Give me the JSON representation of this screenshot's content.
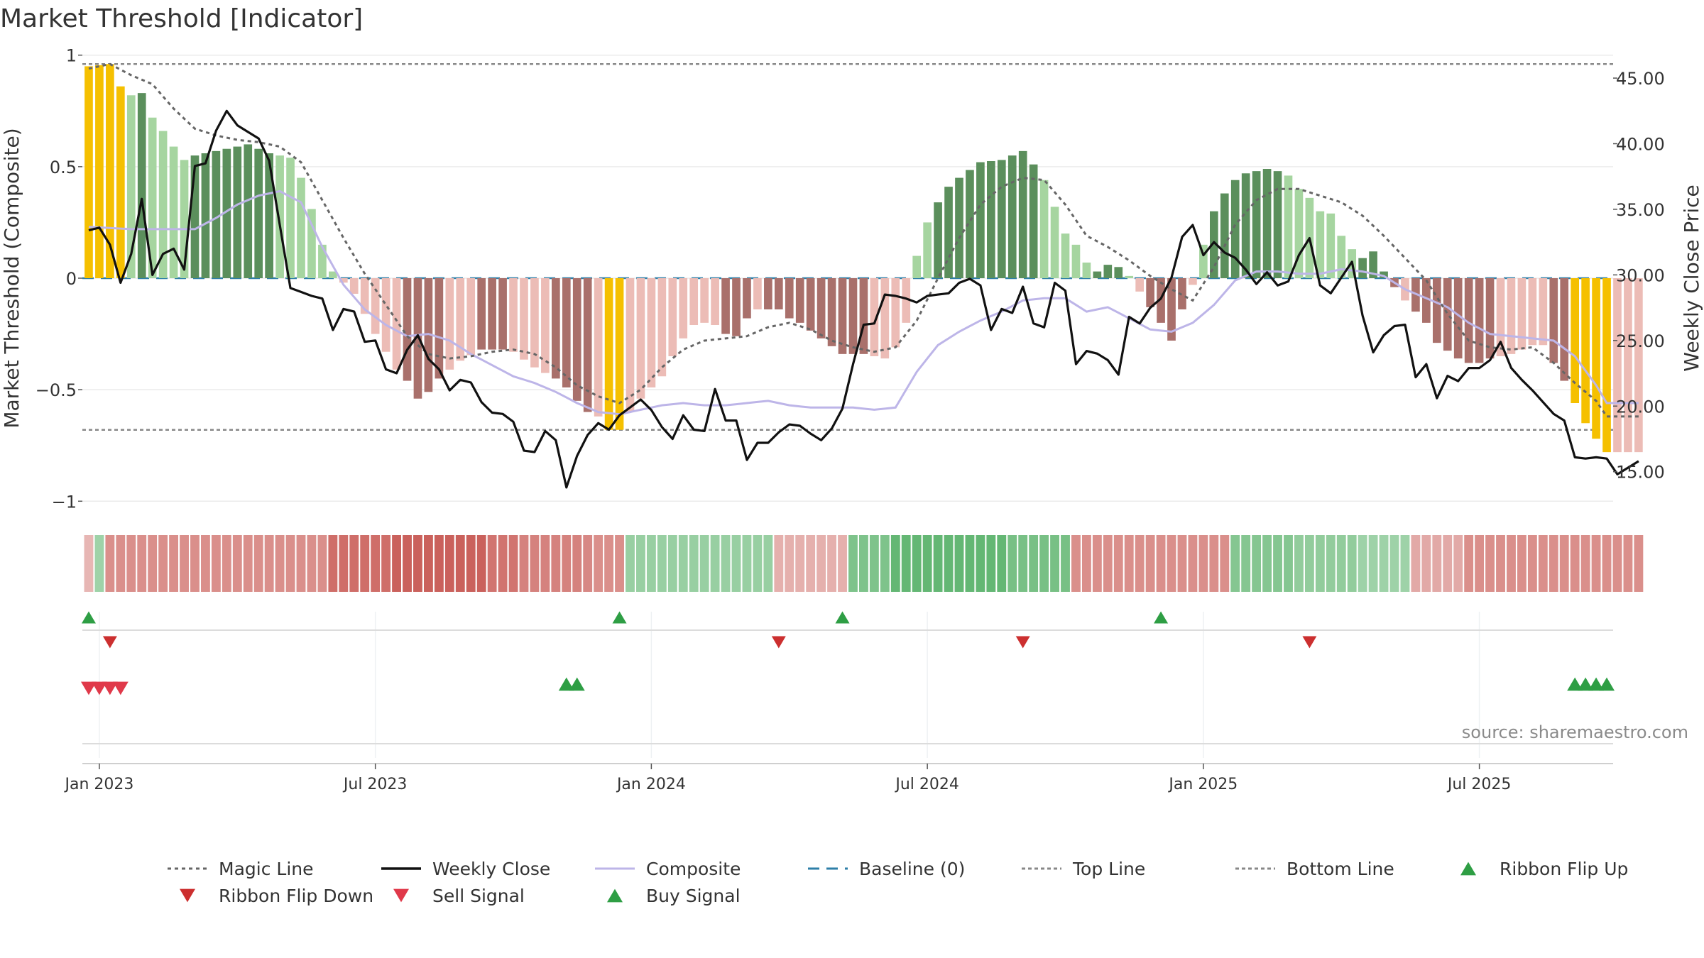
{
  "chart_data": {
    "type": "bar",
    "title": "Market Threshold [Indicator]",
    "ylabel_left": "Market Threshold (Composite)",
    "ylabel_right": "Weekly Close Price",
    "ylim_left": [
      -1.05,
      1.05
    ],
    "ylim_right": [
      11.9,
      47.6
    ],
    "yticks_left": [
      {
        "v": 1,
        "label": "1"
      },
      {
        "v": 0.5,
        "label": "0.5"
      },
      {
        "v": 0,
        "label": "0"
      },
      {
        "v": -0.5,
        "label": "−0.5"
      },
      {
        "v": -1,
        "label": "−1"
      }
    ],
    "yticks_right": [
      {
        "v": 45,
        "label": "45.00"
      },
      {
        "v": 40,
        "label": "40.00"
      },
      {
        "v": 35,
        "label": "35.00"
      },
      {
        "v": 30,
        "label": "30.00"
      },
      {
        "v": 25,
        "label": "25.00"
      },
      {
        "v": 20,
        "label": "20.00"
      },
      {
        "v": 15,
        "label": "15.00"
      }
    ],
    "xticks": [
      {
        "week": 1,
        "label": "Jan 2023"
      },
      {
        "week": 27,
        "label": "Jul 2023"
      },
      {
        "week": 53,
        "label": "Jan 2024"
      },
      {
        "week": 79,
        "label": "Jul 2024"
      },
      {
        "week": 105,
        "label": "Jan 2025"
      },
      {
        "week": 131,
        "label": "Jul 2025"
      }
    ],
    "x_range": [
      -0.6,
      143.6
    ],
    "top_line": 0.96,
    "bottom_line": -0.68,
    "baseline": 0,
    "bar_anchors": [
      [
        0,
        0.95
      ],
      [
        2,
        0.96
      ],
      [
        3,
        0.86
      ],
      [
        4,
        0.82
      ],
      [
        5,
        0.83
      ],
      [
        6,
        0.72
      ],
      [
        7,
        0.66
      ],
      [
        8,
        0.59
      ],
      [
        9,
        0.53
      ],
      [
        10,
        0.55
      ],
      [
        11,
        0.56
      ],
      [
        13,
        0.58
      ],
      [
        14,
        0.59
      ],
      [
        15,
        0.6
      ],
      [
        17,
        0.56
      ],
      [
        18,
        0.55
      ],
      [
        19,
        0.54
      ],
      [
        20,
        0.45
      ],
      [
        21,
        0.31
      ],
      [
        22,
        0.15
      ],
      [
        23,
        0.03
      ],
      [
        24,
        -0.02
      ],
      [
        25,
        -0.07
      ],
      [
        26,
        -0.16
      ],
      [
        27,
        -0.25
      ],
      [
        28,
        -0.33
      ],
      [
        29,
        -0.41
      ],
      [
        30,
        -0.46
      ],
      [
        31,
        -0.54
      ],
      [
        32,
        -0.51
      ],
      [
        33,
        -0.45
      ],
      [
        35,
        -0.37
      ],
      [
        37,
        -0.32
      ],
      [
        39,
        -0.32
      ],
      [
        40,
        -0.33
      ],
      [
        42,
        -0.4
      ],
      [
        44,
        -0.45
      ],
      [
        45,
        -0.49
      ],
      [
        46,
        -0.55
      ],
      [
        47,
        -0.6
      ],
      [
        48,
        -0.62
      ],
      [
        49,
        -0.68
      ],
      [
        50,
        -0.68
      ],
      [
        51,
        -0.6
      ],
      [
        52,
        -0.54
      ],
      [
        53,
        -0.49
      ],
      [
        54,
        -0.44
      ],
      [
        55,
        -0.35
      ],
      [
        56,
        -0.27
      ],
      [
        57,
        -0.21
      ],
      [
        58,
        -0.2
      ],
      [
        59,
        -0.21
      ],
      [
        60,
        -0.25
      ],
      [
        61,
        -0.26
      ],
      [
        62,
        -0.18
      ],
      [
        63,
        -0.14
      ],
      [
        65,
        -0.14
      ],
      [
        66,
        -0.18
      ],
      [
        67,
        -0.2
      ],
      [
        69,
        -0.27
      ],
      [
        71,
        -0.34
      ],
      [
        73,
        -0.34
      ],
      [
        75,
        -0.36
      ],
      [
        76,
        -0.31
      ],
      [
        77,
        -0.2
      ],
      [
        78,
        0.1
      ],
      [
        79,
        0.25
      ],
      [
        80,
        0.34
      ],
      [
        81,
        0.41
      ],
      [
        82,
        0.45
      ],
      [
        84,
        0.52
      ],
      [
        86,
        0.53
      ],
      [
        87,
        0.55
      ],
      [
        88,
        0.57
      ],
      [
        89,
        0.51
      ],
      [
        90,
        0.44
      ],
      [
        91,
        0.32
      ],
      [
        92,
        0.2
      ],
      [
        93,
        0.15
      ],
      [
        94,
        0.07
      ],
      [
        95,
        0.03
      ],
      [
        96,
        0.06
      ],
      [
        97,
        0.05
      ],
      [
        98,
        0.01
      ],
      [
        99,
        -0.06
      ],
      [
        100,
        -0.13
      ],
      [
        101,
        -0.2
      ],
      [
        102,
        -0.28
      ],
      [
        103,
        -0.14
      ],
      [
        104,
        -0.03
      ],
      [
        105,
        0.15
      ],
      [
        106,
        0.3
      ],
      [
        107,
        0.38
      ],
      [
        108,
        0.44
      ],
      [
        109,
        0.47
      ],
      [
        110,
        0.48
      ],
      [
        111,
        0.49
      ],
      [
        112,
        0.48
      ],
      [
        113,
        0.46
      ],
      [
        114,
        0.4
      ],
      [
        115,
        0.36
      ],
      [
        116,
        0.3
      ],
      [
        117,
        0.29
      ],
      [
        118,
        0.19
      ],
      [
        119,
        0.13
      ],
      [
        120,
        0.09
      ],
      [
        121,
        0.12
      ],
      [
        122,
        0.03
      ],
      [
        123,
        -0.04
      ],
      [
        124,
        -0.1
      ],
      [
        125,
        -0.15
      ],
      [
        126,
        -0.2
      ],
      [
        127,
        -0.29
      ],
      [
        129,
        -0.36
      ],
      [
        130,
        -0.38
      ],
      [
        131,
        -0.38
      ],
      [
        132,
        -0.36
      ],
      [
        134,
        -0.34
      ],
      [
        135,
        -0.32
      ],
      [
        136,
        -0.3
      ],
      [
        137,
        -0.3
      ],
      [
        138,
        -0.38
      ],
      [
        139,
        -0.46
      ],
      [
        140,
        -0.56
      ],
      [
        141,
        -0.65
      ],
      [
        142,
        -0.72
      ],
      [
        143,
        -0.78
      ]
    ],
    "yellow_bars": [
      [
        0,
        3
      ],
      [
        49,
        50
      ],
      [
        140,
        143
      ]
    ],
    "dark_bars": [
      [
        5,
        5
      ],
      [
        10,
        17
      ],
      [
        30,
        33
      ],
      [
        37,
        39
      ],
      [
        44,
        47
      ],
      [
        60,
        62
      ],
      [
        64,
        66
      ],
      [
        67,
        73
      ],
      [
        80,
        89
      ],
      [
        95,
        97
      ],
      [
        100,
        103
      ],
      [
        106,
        112
      ],
      [
        120,
        121
      ],
      [
        122,
        123
      ],
      [
        125,
        132
      ],
      [
        138,
        141
      ]
    ],
    "magic_line_anchors": [
      [
        0,
        0.94
      ],
      [
        2,
        0.96
      ],
      [
        4,
        0.91
      ],
      [
        6,
        0.87
      ],
      [
        8,
        0.76
      ],
      [
        10,
        0.67
      ],
      [
        12,
        0.64
      ],
      [
        14,
        0.62
      ],
      [
        16,
        0.61
      ],
      [
        18,
        0.59
      ],
      [
        20,
        0.52
      ],
      [
        22,
        0.35
      ],
      [
        24,
        0.18
      ],
      [
        26,
        0.02
      ],
      [
        28,
        -0.12
      ],
      [
        30,
        -0.26
      ],
      [
        32,
        -0.34
      ],
      [
        34,
        -0.36
      ],
      [
        36,
        -0.35
      ],
      [
        38,
        -0.33
      ],
      [
        40,
        -0.32
      ],
      [
        42,
        -0.34
      ],
      [
        44,
        -0.4
      ],
      [
        46,
        -0.48
      ],
      [
        48,
        -0.53
      ],
      [
        50,
        -0.56
      ],
      [
        52,
        -0.5
      ],
      [
        54,
        -0.4
      ],
      [
        56,
        -0.32
      ],
      [
        58,
        -0.28
      ],
      [
        60,
        -0.27
      ],
      [
        62,
        -0.26
      ],
      [
        64,
        -0.22
      ],
      [
        66,
        -0.2
      ],
      [
        68,
        -0.23
      ],
      [
        70,
        -0.28
      ],
      [
        72,
        -0.31
      ],
      [
        74,
        -0.33
      ],
      [
        76,
        -0.31
      ],
      [
        78,
        -0.19
      ],
      [
        80,
        0.0
      ],
      [
        82,
        0.18
      ],
      [
        84,
        0.33
      ],
      [
        86,
        0.41
      ],
      [
        88,
        0.45
      ],
      [
        90,
        0.44
      ],
      [
        92,
        0.33
      ],
      [
        94,
        0.19
      ],
      [
        96,
        0.14
      ],
      [
        98,
        0.08
      ],
      [
        100,
        0.01
      ],
      [
        102,
        -0.05
      ],
      [
        104,
        -0.1
      ],
      [
        106,
        0.05
      ],
      [
        108,
        0.24
      ],
      [
        110,
        0.35
      ],
      [
        112,
        0.4
      ],
      [
        114,
        0.4
      ],
      [
        116,
        0.37
      ],
      [
        118,
        0.34
      ],
      [
        120,
        0.28
      ],
      [
        122,
        0.19
      ],
      [
        124,
        0.09
      ],
      [
        126,
        -0.01
      ],
      [
        128,
        -0.16
      ],
      [
        130,
        -0.28
      ],
      [
        132,
        -0.31
      ],
      [
        134,
        -0.32
      ],
      [
        136,
        -0.31
      ],
      [
        138,
        -0.38
      ],
      [
        140,
        -0.47
      ],
      [
        142,
        -0.55
      ],
      [
        143,
        -0.62
      ]
    ],
    "composite_anchors": [
      [
        0,
        0.23
      ],
      [
        4,
        0.22
      ],
      [
        8,
        0.22
      ],
      [
        10,
        0.22
      ],
      [
        12,
        0.27
      ],
      [
        14,
        0.33
      ],
      [
        16,
        0.37
      ],
      [
        18,
        0.39
      ],
      [
        20,
        0.34
      ],
      [
        22,
        0.14
      ],
      [
        24,
        -0.03
      ],
      [
        26,
        -0.14
      ],
      [
        28,
        -0.21
      ],
      [
        30,
        -0.26
      ],
      [
        32,
        -0.25
      ],
      [
        34,
        -0.28
      ],
      [
        36,
        -0.34
      ],
      [
        38,
        -0.39
      ],
      [
        40,
        -0.44
      ],
      [
        42,
        -0.47
      ],
      [
        44,
        -0.51
      ],
      [
        46,
        -0.56
      ],
      [
        48,
        -0.6
      ],
      [
        50,
        -0.61
      ],
      [
        52,
        -0.59
      ],
      [
        54,
        -0.57
      ],
      [
        56,
        -0.56
      ],
      [
        58,
        -0.57
      ],
      [
        60,
        -0.57
      ],
      [
        62,
        -0.56
      ],
      [
        64,
        -0.55
      ],
      [
        66,
        -0.57
      ],
      [
        68,
        -0.58
      ],
      [
        70,
        -0.58
      ],
      [
        72,
        -0.58
      ],
      [
        74,
        -0.59
      ],
      [
        76,
        -0.58
      ],
      [
        78,
        -0.42
      ],
      [
        80,
        -0.3
      ],
      [
        82,
        -0.24
      ],
      [
        84,
        -0.19
      ],
      [
        86,
        -0.15
      ],
      [
        88,
        -0.1
      ],
      [
        90,
        -0.09
      ],
      [
        92,
        -0.09
      ],
      [
        94,
        -0.15
      ],
      [
        96,
        -0.13
      ],
      [
        98,
        -0.18
      ],
      [
        100,
        -0.23
      ],
      [
        102,
        -0.24
      ],
      [
        104,
        -0.2
      ],
      [
        106,
        -0.12
      ],
      [
        108,
        -0.01
      ],
      [
        110,
        0.03
      ],
      [
        112,
        0.03
      ],
      [
        114,
        0.02
      ],
      [
        116,
        0.02
      ],
      [
        118,
        0.04
      ],
      [
        120,
        0.03
      ],
      [
        122,
        0.01
      ],
      [
        124,
        -0.05
      ],
      [
        126,
        -0.09
      ],
      [
        128,
        -0.13
      ],
      [
        130,
        -0.2
      ],
      [
        132,
        -0.25
      ],
      [
        134,
        -0.26
      ],
      [
        136,
        -0.27
      ],
      [
        138,
        -0.28
      ],
      [
        140,
        -0.35
      ],
      [
        142,
        -0.48
      ],
      [
        143,
        -0.56
      ]
    ],
    "weekly_close": [
      33.4,
      33.6,
      32.3,
      29.4,
      31.6,
      35.8,
      30.0,
      31.6,
      32.0,
      30.4,
      38.3,
      38.5,
      41.0,
      42.5,
      41.4,
      40.9,
      40.4,
      38.7,
      33.8,
      29.0,
      28.7,
      28.4,
      28.2,
      25.8,
      27.4,
      27.2,
      24.9,
      25.0,
      22.8,
      22.5,
      24.3,
      25.4,
      23.6,
      22.8,
      21.2,
      22.0,
      21.8,
      20.3,
      19.5,
      19.4,
      18.8,
      16.6,
      16.5,
      18.1,
      17.4,
      13.8,
      16.2,
      17.8,
      18.7,
      18.2,
      19.3,
      19.9,
      20.5,
      19.7,
      18.4,
      17.5,
      19.3,
      18.2,
      18.1,
      21.3,
      18.9,
      18.9,
      15.9,
      17.2,
      17.2,
      18.0,
      18.6,
      18.5,
      17.9,
      17.4,
      18.3,
      19.8,
      23.2,
      26.2,
      26.3,
      28.5,
      28.4,
      28.2,
      27.9,
      28.4,
      28.5,
      28.6,
      29.4,
      29.7,
      29.2,
      25.8,
      27.4,
      27.1,
      29.1,
      26.3,
      26.0,
      29.4,
      28.8,
      23.2,
      24.2,
      24.0,
      23.5,
      22.4,
      26.8,
      26.3,
      27.5,
      28.2,
      29.8,
      32.9,
      33.8,
      31.5,
      32.5,
      31.7,
      31.3,
      30.4,
      29.3,
      30.2,
      29.2,
      29.5,
      31.5,
      32.8,
      29.2,
      28.6,
      29.8,
      31.0,
      26.9,
      24.1,
      25.4,
      26.1,
      26.2,
      22.2,
      23.2,
      20.6,
      22.3,
      21.9,
      22.9,
      22.9,
      23.5,
      24.9,
      22.9,
      22.0,
      21.2,
      20.3,
      19.4,
      18.9,
      16.1,
      16.0,
      16.1,
      16.0,
      14.8,
      15.3,
      15.8
    ],
    "ribbon_values": [
      -0.3,
      0.5,
      -0.6,
      -0.6,
      -0.6,
      -0.6,
      -0.6,
      -0.6,
      -0.6,
      -0.6,
      -0.6,
      -0.6,
      -0.6,
      -0.6,
      -0.6,
      -0.6,
      -0.6,
      -0.6,
      -0.6,
      -0.6,
      -0.6,
      -0.6,
      -0.6,
      -0.85,
      -0.85,
      -0.85,
      -0.85,
      -0.85,
      -0.85,
      -0.95,
      -0.95,
      -0.95,
      -0.95,
      -0.95,
      -0.95,
      -0.95,
      -0.95,
      -0.95,
      -0.8,
      -0.8,
      -0.8,
      -0.7,
      -0.7,
      -0.7,
      -0.7,
      -0.7,
      -0.7,
      -0.65,
      -0.6,
      -0.6,
      -0.6,
      0.55,
      0.55,
      0.55,
      0.55,
      0.55,
      0.55,
      0.55,
      0.55,
      0.55,
      0.55,
      0.55,
      0.55,
      0.55,
      0.55,
      -0.35,
      -0.35,
      -0.35,
      -0.35,
      -0.35,
      -0.35,
      -0.35,
      0.75,
      0.75,
      0.75,
      0.75,
      0.95,
      0.95,
      0.95,
      0.95,
      0.95,
      0.95,
      0.95,
      0.95,
      0.95,
      0.95,
      0.95,
      0.8,
      0.8,
      0.8,
      0.8,
      0.8,
      0.8,
      -0.6,
      -0.6,
      -0.6,
      -0.6,
      -0.6,
      -0.6,
      -0.6,
      -0.6,
      -0.6,
      -0.6,
      -0.6,
      -0.6,
      -0.6,
      -0.6,
      -0.6,
      0.7,
      0.7,
      0.7,
      0.7,
      0.7,
      0.7,
      0.6,
      0.6,
      0.6,
      0.6,
      0.6,
      0.6,
      0.5,
      0.5,
      0.5,
      0.5,
      0.5,
      -0.4,
      -0.4,
      -0.4,
      -0.4,
      -0.4,
      -0.6,
      -0.6,
      -0.6,
      -0.6,
      -0.6,
      -0.6,
      -0.6,
      -0.6,
      -0.6,
      -0.6,
      -0.6,
      -0.6,
      -0.6,
      -0.6,
      -0.6,
      -0.6,
      -0.6
    ],
    "ribbon_flip_up_weeks": [
      0,
      50,
      71,
      101
    ],
    "ribbon_flip_down_weeks": [
      2,
      65,
      88,
      115
    ],
    "sell_signal_weeks": [
      0,
      1,
      2,
      3
    ],
    "buy_signal_weeks": [
      45,
      46,
      140,
      141,
      142,
      143
    ],
    "source_text": "source: sharemaestro.com",
    "legend": [
      {
        "key": "magic_line",
        "label": "Magic Line"
      },
      {
        "key": "weekly_close",
        "label": "Weekly Close"
      },
      {
        "key": "composite",
        "label": "Composite"
      },
      {
        "key": "baseline",
        "label": "Baseline (0)"
      },
      {
        "key": "top_line",
        "label": "Top Line"
      },
      {
        "key": "bottom_line",
        "label": "Bottom Line"
      },
      {
        "key": "flip_up",
        "label": "Ribbon Flip Up"
      },
      {
        "key": "flip_down",
        "label": "Ribbon Flip Down"
      },
      {
        "key": "sell",
        "label": "Sell Signal"
      },
      {
        "key": "buy",
        "label": "Buy Signal"
      }
    ],
    "colors": {
      "yellow": "#f5c000",
      "dark_green": "#5b8f5c",
      "light_green": "#a6d5a0",
      "dark_red": "#a9706b",
      "light_red": "#ecbcb6",
      "magic_line": "#666666",
      "weekly_close": "#111111",
      "composite": "#bdb5e8",
      "baseline": "#2e7fa8",
      "ref_line": "#888888",
      "flip_up": "#2e9e44",
      "flip_down": "#cc2f2f",
      "sell": "#e0394a",
      "buy": "#2e9e44",
      "grid": "#ebebeb"
    }
  }
}
